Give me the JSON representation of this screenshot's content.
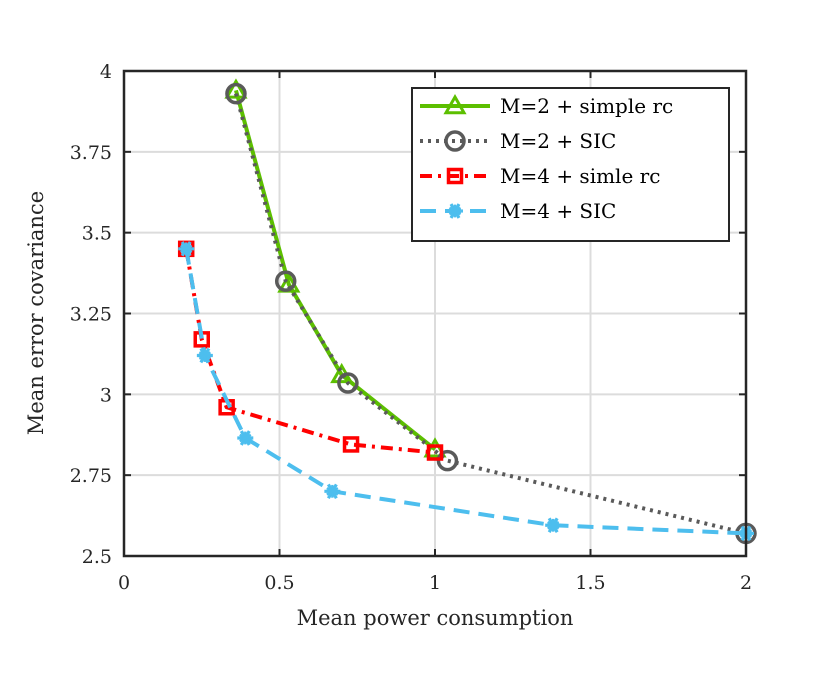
{
  "chart_data": {
    "type": "line",
    "title": "",
    "xlabel": "Mean power consumption",
    "ylabel": "Mean error covariance",
    "xlim": [
      0,
      2
    ],
    "ylim": [
      2.5,
      4
    ],
    "x_ticks": [
      "0",
      "0.5",
      "1",
      "1.5",
      "2"
    ],
    "y_ticks": [
      "2.5",
      "2.75",
      "3",
      "3.25",
      "3.5",
      "3.75",
      "4"
    ],
    "grid": true,
    "legend_position": "top-right",
    "series": [
      {
        "name": "M=2 + simple rc",
        "color": "#5cbf00",
        "line_style": "solid",
        "marker": "triangle",
        "x": [
          0.36,
          0.53,
          0.7,
          1.0
        ],
        "y": [
          3.94,
          3.34,
          3.06,
          2.83
        ]
      },
      {
        "name": "M=2 + SIC",
        "color": "#5a5a5a",
        "line_style": "dotted",
        "marker": "circle",
        "x": [
          0.36,
          0.52,
          0.72,
          1.04,
          2.0
        ],
        "y": [
          3.93,
          3.35,
          3.035,
          2.795,
          2.57
        ]
      },
      {
        "name": "M=4 + simle rc",
        "color": "#ff0000",
        "line_style": "dashdot",
        "marker": "square",
        "x": [
          0.2,
          0.25,
          0.33,
          0.73,
          1.0
        ],
        "y": [
          3.45,
          3.17,
          2.96,
          2.845,
          2.82
        ]
      },
      {
        "name": "M=4 + SIC",
        "color": "#4dbeee",
        "line_style": "dashed",
        "marker": "asterisk",
        "x": [
          0.2,
          0.26,
          0.39,
          0.67,
          1.38,
          2.0
        ],
        "y": [
          3.45,
          3.12,
          2.865,
          2.7,
          2.595,
          2.57
        ]
      }
    ]
  }
}
